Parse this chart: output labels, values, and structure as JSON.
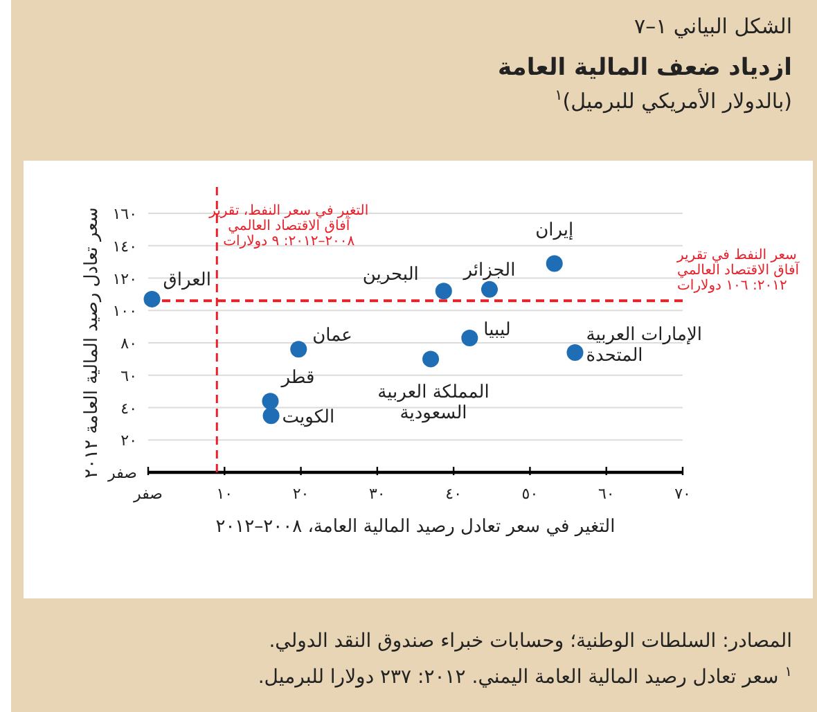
{
  "chart_data": {
    "type": "scatter",
    "title": "ازدياد ضعف المالية العامة",
    "subtitle": "(بالدولار الأمريكي للبرميل)$^{١}$",
    "xlabel": "التغير في سعر تعادل رصيد المالية العامة، ٢٠٠٨–٢٠١٢",
    "ylabel": "سعر تعادل رصيد المالية العامة ٢٠١٢",
    "x": [
      0.5,
      19.7,
      16,
      16.1,
      37,
      38.7,
      44.7,
      42.1,
      53.2,
      55.9
    ],
    "values": [
      107,
      76,
      44,
      35,
      70,
      112,
      113,
      83,
      129,
      74
    ],
    "color": "#1f6db5",
    "marker": "circle",
    "grid": "y",
    "xlim": [
      0,
      70
    ],
    "ylim": [
      0,
      160
    ],
    "xticks": [
      {
        "value": 0,
        "label": "صفر"
      },
      {
        "value": 10,
        "label": "١٠"
      },
      {
        "value": 20,
        "label": "٢٠"
      },
      {
        "value": 30,
        "label": "٣٠"
      },
      {
        "value": 40,
        "label": "٤٠"
      },
      {
        "value": 50,
        "label": "٥٠"
      },
      {
        "value": 60,
        "label": "٦٠"
      },
      {
        "value": 70,
        "label": "٧٠"
      }
    ],
    "yticks": [
      {
        "value": 0,
        "label": "صفر"
      },
      {
        "value": 20,
        "label": "٢٠"
      },
      {
        "value": 40,
        "label": "٤٠"
      },
      {
        "value": 60,
        "label": "٦٠"
      },
      {
        "value": 80,
        "label": "٨٠"
      },
      {
        "value": 100,
        "label": "١٠٠"
      },
      {
        "value": 120,
        "label": "١٢٠"
      },
      {
        "value": 140,
        "label": "١٤٠"
      },
      {
        "value": 160,
        "label": "١٦٠"
      }
    ],
    "ref_lines": [
      {
        "axis": "x",
        "value": 9,
        "label": "التغير في سعر النفط، تقرير آفاق الاقتصاد العالمي ٢٠٠٨–٢٠١٢: ٩ دولارات",
        "color": "#e8202a",
        "line_style": "dashed"
      },
      {
        "axis": "y",
        "value": 106,
        "label": "سعر النفط في تقرير آفاق الاقتصاد العالمي ٢٠١٢: ١٠٦ دولارات",
        "color": "#e8202a",
        "line_style": "dashed"
      }
    ],
    "annotations": [
      "الشكل البياني ١–٧",
      "المصادر: السلطات الوطنية؛ وحسابات خبراء صندوق النقد الدولي.",
      "$^{١}$ سعر تعادل رصيد المالية العامة اليمني. ٢٠١٢: ٢٣٧ دولارا للبرميل.",
      {
        "text": "العراق",
        "x": 0.5,
        "y": 107
      },
      {
        "text": "عمان",
        "x": 19.7,
        "y": 76
      },
      {
        "text": "قطر",
        "x": 16,
        "y": 44
      },
      {
        "text": "الكويت",
        "x": 16.1,
        "y": 35
      },
      {
        "text": "المملكة العربية السعودية",
        "x": 37,
        "y": 70
      },
      {
        "text": "البحرين",
        "x": 38.7,
        "y": 112
      },
      {
        "text": "الجزائر",
        "x": 44.7,
        "y": 113
      },
      {
        "text": "ليبيا",
        "x": 42.1,
        "y": 83
      },
      {
        "text": "إيران",
        "x": 53.2,
        "y": 129
      },
      {
        "text": "الإمارات العربية المتحدة",
        "x": 55.9,
        "y": 74
      }
    ]
  }
}
